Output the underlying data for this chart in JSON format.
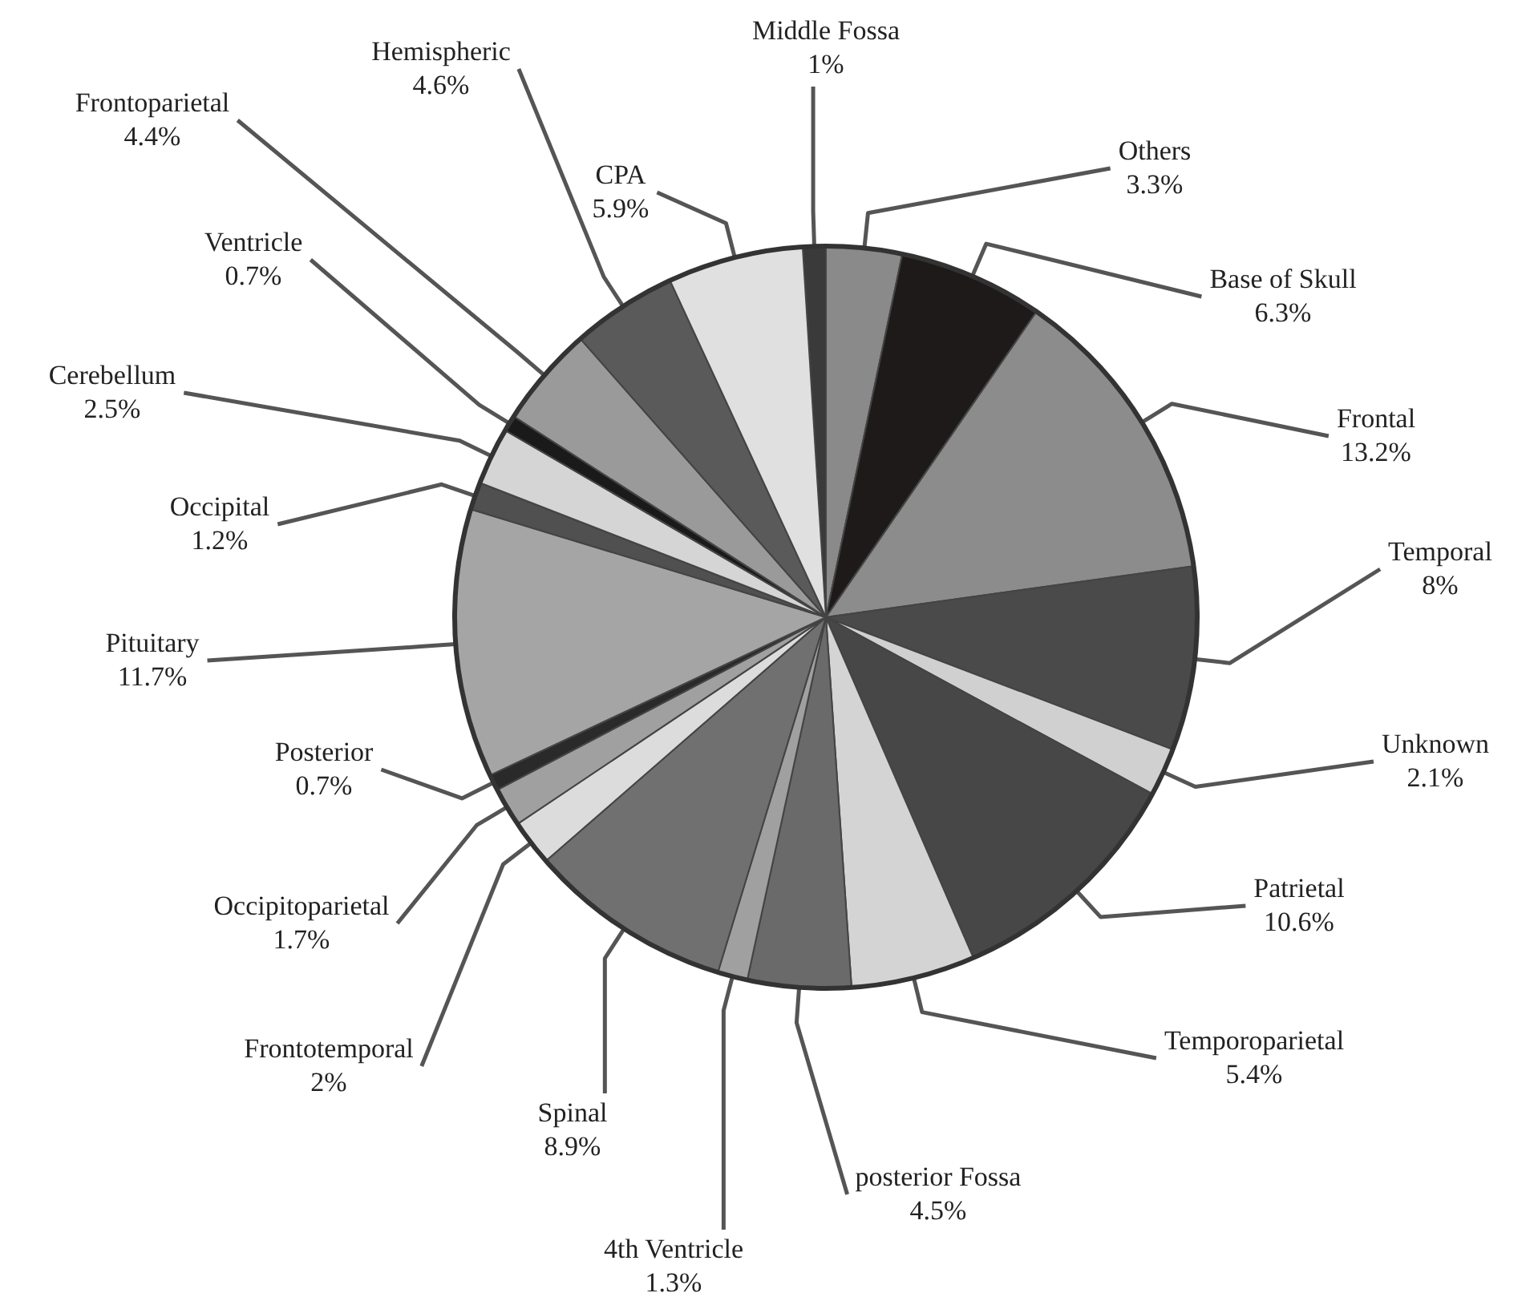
{
  "chart_data": {
    "type": "pie",
    "categories": [
      "Middle Fossa",
      "Others",
      "Base of Skull",
      "Frontal",
      "Temporal",
      "Unknown",
      "Patrietal",
      "Temporoparietal",
      "posterior Fossa",
      "4th Ventricle",
      "Spinal",
      "Frontotemporal",
      "Occipitoparietal",
      "Posterior",
      "Pituitary",
      "Occipital",
      "Cerebellum",
      "Ventricle",
      "Frontoparietal",
      "Hemispheric",
      "CPA"
    ],
    "values": [
      1,
      3.3,
      6.3,
      13.2,
      8,
      2.1,
      10.6,
      5.4,
      4.5,
      1.3,
      8.9,
      2,
      1.7,
      0.7,
      11.7,
      1.2,
      2.5,
      0.7,
      4.4,
      4.6,
      5.9
    ],
    "value_labels": [
      "1%",
      "3.3%",
      "6.3%",
      "13.2%",
      "8%",
      "2.1%",
      "10.6%",
      "5.4%",
      "4.5%",
      "1.3%",
      "8.9%",
      "2%",
      "1.7%",
      "0.7%",
      "11.7%",
      "1.2%",
      "2.5%",
      "0.7%",
      "4.4%",
      "4.6%",
      "5.9%"
    ],
    "colors": [
      "#3a3a3a",
      "#8a8a8a",
      "#1e1a1a",
      "#8c8c8c",
      "#4a4a4a",
      "#d0d0d0",
      "#474747",
      "#d4d4d4",
      "#6a6a6a",
      "#a0a0a0",
      "#707070",
      "#dcdcdc",
      "#a0a0a0",
      "#2a2a2a",
      "#a5a5a5",
      "#505050",
      "#d5d5d5",
      "#1a1a1a",
      "#9a9a9a",
      "#5a5a5a",
      "#e0e0e0"
    ],
    "legend": false
  }
}
